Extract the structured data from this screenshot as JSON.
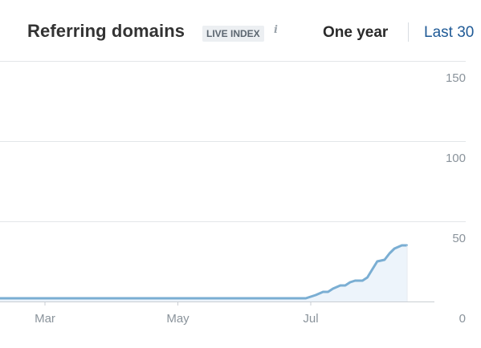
{
  "header": {
    "title": "Referring domains",
    "badge": "LIVE INDEX",
    "info_icon": "info-icon",
    "ranges": [
      {
        "label": "One year",
        "active": true
      },
      {
        "label": "Last 30",
        "active": false
      }
    ]
  },
  "colors": {
    "line": "#7aaed3",
    "area": "#edf4fb",
    "grid": "#e3e6e9",
    "active_range": "#2a2a2a",
    "link_range": "#1f5a96"
  },
  "chart_data": {
    "type": "area",
    "title": "Referring domains",
    "xlabel": "",
    "ylabel": "",
    "ylim": [
      0,
      150
    ],
    "yticks": [
      150,
      100,
      50,
      0
    ],
    "xticks": [
      "Mar",
      "May",
      "Jul"
    ],
    "grid": true,
    "series": [
      {
        "values": [
          {
            "t": 0.0,
            "y": 2
          },
          {
            "t": 0.55,
            "y": 2
          },
          {
            "t": 0.62,
            "y": 2
          },
          {
            "t": 0.64,
            "y": 4
          },
          {
            "t": 0.655,
            "y": 6
          },
          {
            "t": 0.665,
            "y": 6
          },
          {
            "t": 0.675,
            "y": 8
          },
          {
            "t": 0.69,
            "y": 10
          },
          {
            "t": 0.7,
            "y": 10
          },
          {
            "t": 0.71,
            "y": 12
          },
          {
            "t": 0.72,
            "y": 13
          },
          {
            "t": 0.735,
            "y": 13
          },
          {
            "t": 0.745,
            "y": 15
          },
          {
            "t": 0.755,
            "y": 20
          },
          {
            "t": 0.765,
            "y": 25
          },
          {
            "t": 0.78,
            "y": 26
          },
          {
            "t": 0.79,
            "y": 30
          },
          {
            "t": 0.8,
            "y": 33
          },
          {
            "t": 0.815,
            "y": 35
          },
          {
            "t": 0.825,
            "y": 35
          }
        ]
      }
    ],
    "timeline": {
      "start_month": "Jan",
      "end_month": "Aug",
      "tick_positions": {
        "Mar": 0.09,
        "May": 0.36,
        "Jul": 0.63
      }
    }
  }
}
